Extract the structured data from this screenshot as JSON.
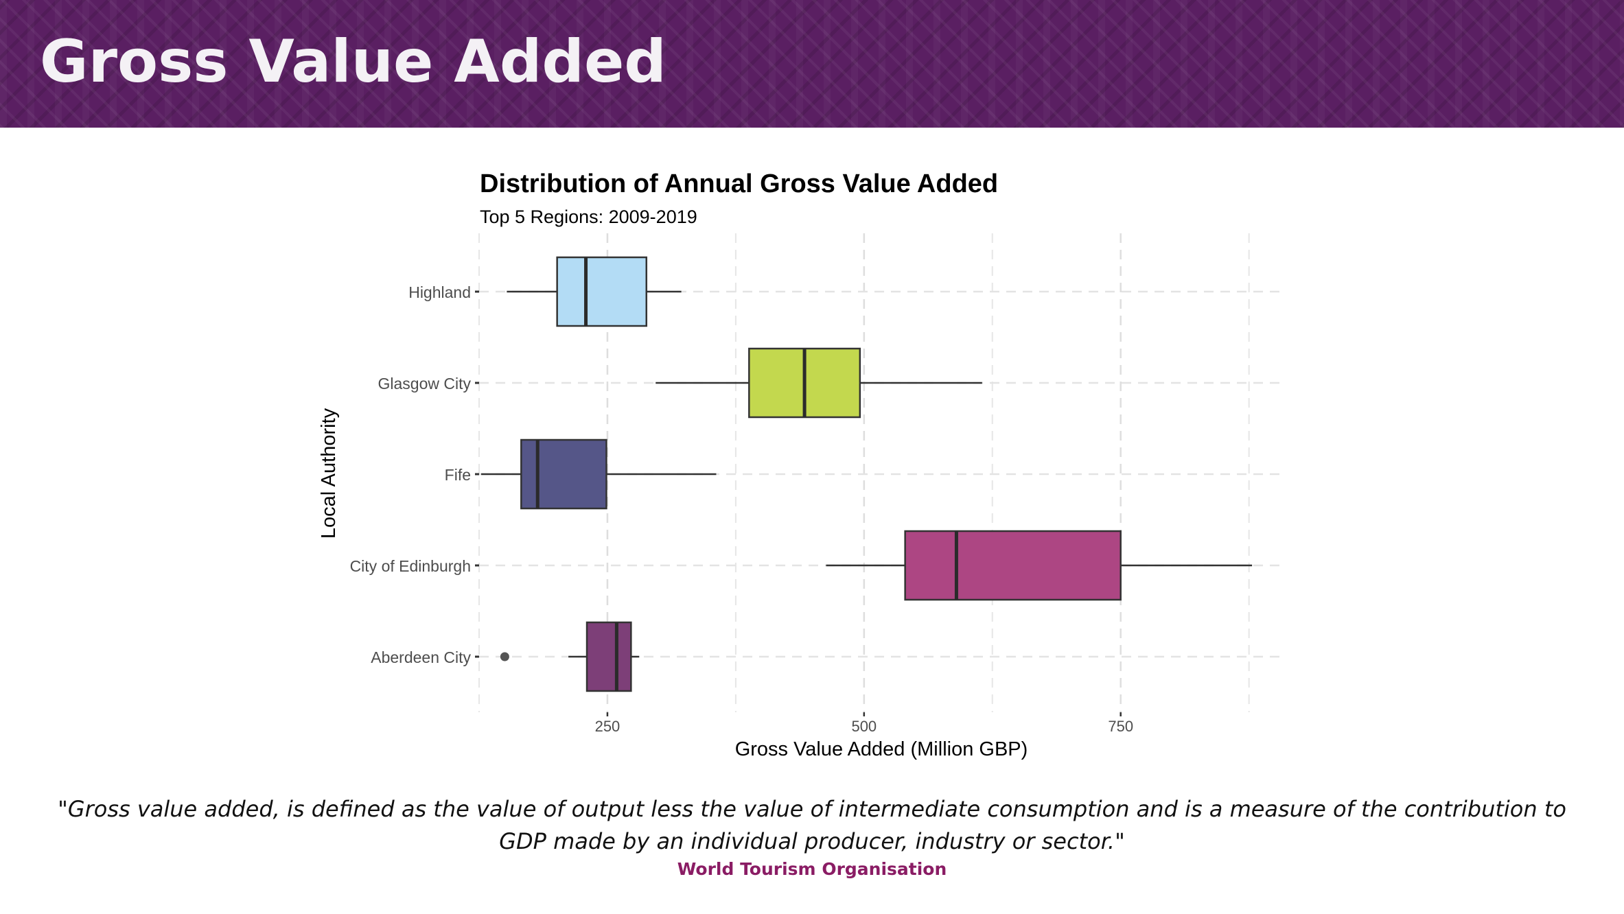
{
  "header": {
    "title": "Gross Value Added"
  },
  "colors": {
    "header_bg": "#5a1f62",
    "source_text": "#8a1c64"
  },
  "chart_data": {
    "type": "boxplot",
    "orientation": "horizontal",
    "title": "Distribution of Annual Gross Value Added",
    "subtitle": "Top 5 Regions: 2009-2019",
    "xlabel": "Gross Value Added (Million GBP)",
    "ylabel": "Local Authority",
    "xlim": [
      125,
      910
    ],
    "xticks": [
      250,
      500,
      750
    ],
    "grid": true,
    "series": [
      {
        "category": "Highland",
        "color": "#b3dcf5",
        "min": 152,
        "q1": 201,
        "median": 229,
        "q3": 288,
        "max": 322,
        "outliers": []
      },
      {
        "category": "Glasgow City",
        "color": "#c3d84e",
        "min": 297,
        "q1": 388,
        "median": 442,
        "q3": 496,
        "max": 615,
        "outliers": []
      },
      {
        "category": "Fife",
        "color": "#555688",
        "min": 127,
        "q1": 166,
        "median": 182,
        "q3": 249,
        "max": 356,
        "outliers": []
      },
      {
        "category": "City of Edinburgh",
        "color": "#ad4683",
        "min": 463,
        "q1": 540,
        "median": 590,
        "q3": 750,
        "max": 878,
        "outliers": []
      },
      {
        "category": "Aberdeen City",
        "color": "#7d3f78",
        "min": 212,
        "q1": 230,
        "median": 259,
        "q3": 273,
        "max": 281,
        "outliers": [
          150
        ]
      }
    ]
  },
  "quote": {
    "text": "\"Gross value added, is defined as the value of output less the value of intermediate consumption and is a measure of the contribution to GDP made by an individual producer, industry or sector.\"",
    "source": "World Tourism Organisation"
  }
}
